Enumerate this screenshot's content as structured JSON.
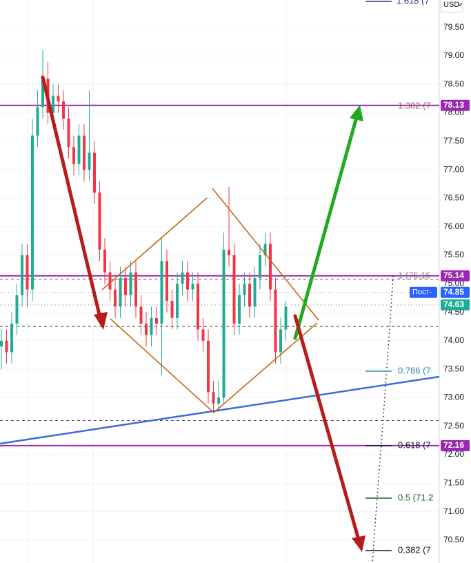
{
  "chart_data": {
    "type": "candlestick",
    "currency": "USD",
    "up_color": "#22ab94",
    "down_color": "#f23645",
    "ylim": [
      70.1,
      79.98
    ],
    "yticks": [
      {
        "value": 70.5,
        "label": "70.50"
      },
      {
        "value": 71,
        "label": "71.00"
      },
      {
        "value": 71.5,
        "label": "71.50"
      },
      {
        "value": 72,
        "label": "72.00"
      },
      {
        "value": 72.5,
        "label": "72.50"
      },
      {
        "value": 73,
        "label": "73.00"
      },
      {
        "value": 73.5,
        "label": "73.50"
      },
      {
        "value": 74,
        "label": "74.00"
      },
      {
        "value": 74.5,
        "label": "74.50"
      },
      {
        "value": 75,
        "label": "75.00"
      },
      {
        "value": 75.5,
        "label": "75.50"
      },
      {
        "value": 76,
        "label": "76.00"
      },
      {
        "value": 76.5,
        "label": "76.50"
      },
      {
        "value": 77,
        "label": "77.00"
      },
      {
        "value": 77.5,
        "label": "77.50"
      },
      {
        "value": 78,
        "label": "78.00"
      },
      {
        "value": 78.5,
        "label": "78.50"
      },
      {
        "value": 79,
        "label": "79.00"
      },
      {
        "value": 79.5,
        "label": "79.50"
      }
    ],
    "open": [
      73.9,
      74.0,
      73.8,
      74.3,
      74.8,
      75.5,
      74.9,
      77.6,
      78.1,
      78.6,
      78.0,
      78.3,
      78.2,
      77.9,
      77.4,
      77.1,
      77.6,
      77.0,
      77.3,
      76.6,
      75.6,
      75.2,
      74.9,
      74.6,
      75.1,
      74.8,
      75.2,
      74.6,
      74.3,
      74.1,
      74.4,
      74.3,
      75.4,
      74.7,
      74.4,
      75.0,
      75.2,
      74.9,
      75.0,
      74.2,
      74.0,
      73.1,
      72.9,
      73.0,
      75.6,
      75.5,
      74.3,
      74.8,
      75.0,
      74.6,
      75.1,
      75.5,
      75.7,
      74.9,
      73.8,
      74.2
    ],
    "high": [
      74.2,
      74.2,
      74.5,
      75.0,
      75.7,
      75.7,
      77.9,
      78.4,
      79.1,
      78.9,
      78.5,
      78.5,
      78.4,
      78.1,
      77.6,
      77.8,
      77.8,
      78.4,
      77.5,
      76.8,
      75.8,
      75.4,
      75.1,
      75.3,
      75.3,
      75.4,
      75.4,
      74.8,
      74.5,
      74.6,
      74.6,
      75.8,
      75.6,
      74.9,
      75.2,
      75.4,
      75.4,
      75.2,
      75.2,
      74.4,
      74.2,
      73.3,
      73.3,
      75.9,
      76.7,
      75.7,
      75.0,
      75.2,
      75.2,
      75.3,
      75.7,
      75.9,
      75.9,
      75.1,
      74.4,
      74.7
    ],
    "low": [
      73.5,
      73.6,
      73.6,
      74.1,
      74.6,
      74.6,
      74.7,
      77.4,
      77.9,
      77.8,
      77.8,
      78.0,
      77.7,
      77.2,
      76.9,
      76.9,
      76.8,
      76.8,
      76.4,
      75.4,
      75.0,
      74.7,
      74.4,
      74.4,
      74.6,
      74.6,
      74.4,
      74.1,
      73.9,
      73.9,
      74.1,
      73.4,
      74.5,
      74.2,
      74.2,
      74.8,
      74.7,
      74.7,
      74.0,
      73.8,
      72.9,
      72.75,
      72.75,
      72.9,
      75.3,
      74.1,
      74.1,
      74.6,
      74.4,
      74.4,
      74.9,
      75.3,
      74.7,
      73.6,
      73.6,
      74.0
    ],
    "close": [
      74.0,
      73.8,
      74.3,
      74.8,
      75.5,
      74.9,
      77.6,
      78.1,
      78.6,
      78.0,
      78.3,
      78.2,
      77.9,
      77.4,
      77.1,
      77.6,
      77.0,
      77.3,
      76.6,
      75.6,
      75.2,
      74.9,
      74.6,
      75.1,
      74.8,
      75.2,
      74.6,
      74.3,
      74.1,
      74.4,
      74.3,
      75.4,
      74.7,
      74.4,
      75.0,
      75.2,
      74.9,
      75.0,
      74.2,
      74.0,
      73.1,
      72.9,
      73.0,
      75.6,
      75.5,
      74.3,
      74.8,
      75.0,
      74.6,
      75.1,
      75.5,
      75.7,
      74.9,
      73.8,
      74.2,
      74.6
    ],
    "levels": [
      {
        "value": 78.13,
        "label": "78.13",
        "color": "#9c27b0"
      },
      {
        "value": 75.14,
        "label": "75.14",
        "color": "#9c27b0"
      },
      {
        "value": 72.16,
        "label": "72.16",
        "color": "#9c27b0"
      }
    ],
    "price_tags": [
      {
        "value": 74.85,
        "label": "74.85",
        "color": "#2962ff",
        "caption": "Пост-"
      },
      {
        "value": 74.63,
        "label": "74.63",
        "color": "#22ab94"
      }
    ],
    "dashed_levels": [
      75.08,
      74.25,
      72.6
    ],
    "fib_labels": [
      "1.618 (7",
      "1.382 (7",
      "1 (75.15",
      "0.786 (7",
      "0.618 (7",
      "0.5 (71.2",
      "0.382 (7"
    ]
  }
}
